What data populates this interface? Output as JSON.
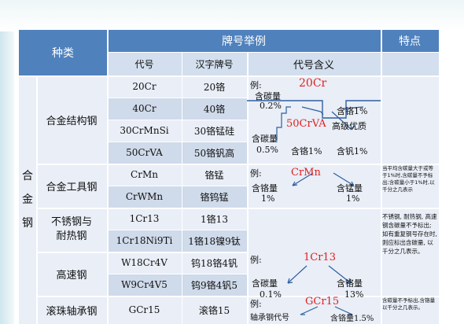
{
  "header": {
    "kind": "种类",
    "examples": "牌号举例",
    "features": "特点",
    "code": "代号",
    "chinese": "汉字牌号",
    "meaning": "代号含义"
  },
  "group_label": [
    "合",
    "金",
    "钢"
  ],
  "rows": [
    {
      "kind": "合金结构钢",
      "items": [
        {
          "code": "20Cr",
          "cn": "20铬"
        },
        {
          "code": "40Cr",
          "cn": "40铬"
        },
        {
          "code": "30CrMnSi",
          "cn": "30铬锰硅"
        },
        {
          "code": "50CrVA",
          "cn": "50铬钒高"
        }
      ]
    },
    {
      "kind": "合金工具钢",
      "items": [
        {
          "code": "CrMn",
          "cn": "铬锰"
        },
        {
          "code": "CrWMn",
          "cn": "铬钨锰"
        }
      ]
    },
    {
      "kind": "不锈钢与耐热钢",
      "kind_lines": [
        "不锈钢与",
        "耐热钢"
      ],
      "items": [
        {
          "code": "1Cr13",
          "cn": "1铬13"
        },
        {
          "code": "1Cr18Ni9Ti",
          "cn": "1铬18镍9钛"
        }
      ]
    },
    {
      "kind": "高速钢",
      "items": [
        {
          "code": "W18Cr4V",
          "cn": "钨18铬4钒"
        },
        {
          "code": "W9Cr4V5",
          "cn": "钨9铬4钒5"
        }
      ]
    },
    {
      "kind": "滚珠轴承钢",
      "items": [
        {
          "code": "GCr15",
          "cn": "滚铬15"
        }
      ]
    }
  ],
  "meaning": {
    "structural": {
      "example_label": "例:",
      "code1": "20Cr",
      "carbon": "含碳量",
      "carbon_val": "0.2%",
      "cr1": "含铬1%",
      "code2": "50CrVA",
      "high_quality": "高级优质",
      "carbon2": "含碳量",
      "carbon2_val": "0.5%",
      "cr2": "含铬1%",
      "v": "含钒1%"
    },
    "tool": {
      "example_label": "例:",
      "code": "CrMn",
      "cr": "含铬量",
      "cr_val": "1%",
      "mn": "含锰量",
      "mn_val": "1%"
    },
    "stainless": {
      "example_label": "例:",
      "code": "1Cr13",
      "carbon": "含碳量",
      "carbon_val": "0.1%",
      "cr": "含铬量",
      "cr_val": "13%"
    },
    "bearing": {
      "example_label": "例:",
      "code": "GCr15",
      "bearing_code": "轴承钢代号",
      "cr": "含铬量1.5%"
    }
  },
  "features": {
    "tool": "当平均含碳量大于或等于1%时,含碳量不予标出;含碳量小于1%时,以千分之几表示",
    "stainless": "不锈钢, 耐热钢, 高速钢含碳量不予标出;如有重复钢号存在时, 则应标出含碳量, 以千分之几表示。",
    "bearing": "含碳量不予标出,含铬量以千分之几表示。"
  }
}
